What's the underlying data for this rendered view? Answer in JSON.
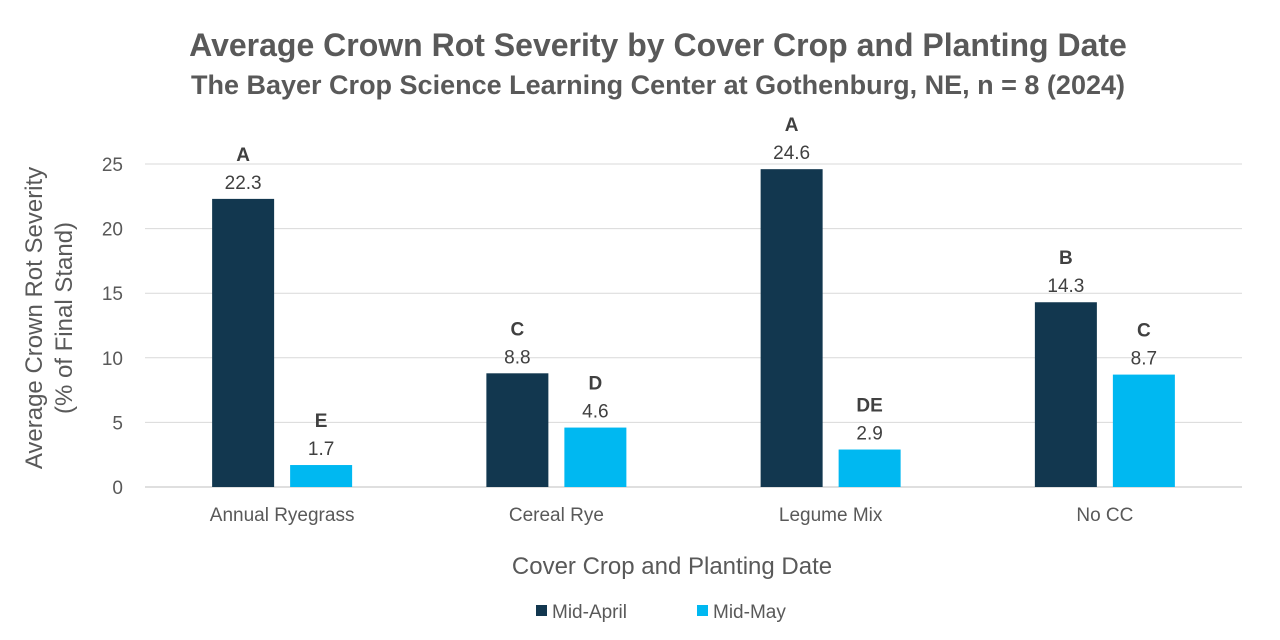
{
  "chart_data": {
    "type": "bar",
    "title": "Average Crown Rot Severity by Cover Crop and Planting Date",
    "subtitle": "The Bayer Crop Science Learning Center at Gothenburg, NE, n = 8 (2024)",
    "xlabel": "Cover Crop and Planting Date",
    "ylabel_line1": "Average Crown Rot Severity",
    "ylabel_line2": "(% of Final Stand)",
    "ylim": [
      0,
      25
    ],
    "yticks": [
      0,
      5,
      10,
      15,
      20,
      25
    ],
    "grid": true,
    "legend_position": "bottom",
    "categories": [
      "Annual Ryegrass",
      "Cereal Rye",
      "Legume Mix",
      "No CC"
    ],
    "series": [
      {
        "name": "Mid-April",
        "color": "#12374F",
        "values": [
          22.3,
          8.8,
          24.6,
          14.3
        ],
        "value_labels": [
          "22.3",
          "8.8",
          "24.6",
          "14.3"
        ],
        "group_letters": [
          "A",
          "C",
          "A",
          "B"
        ]
      },
      {
        "name": "Mid-May",
        "color": "#00B8F1",
        "values": [
          1.7,
          4.6,
          2.9,
          8.7
        ],
        "value_labels": [
          "1.7",
          "4.6",
          "2.9",
          "8.7"
        ],
        "group_letters": [
          "E",
          "D",
          "DE",
          "C"
        ]
      }
    ]
  }
}
